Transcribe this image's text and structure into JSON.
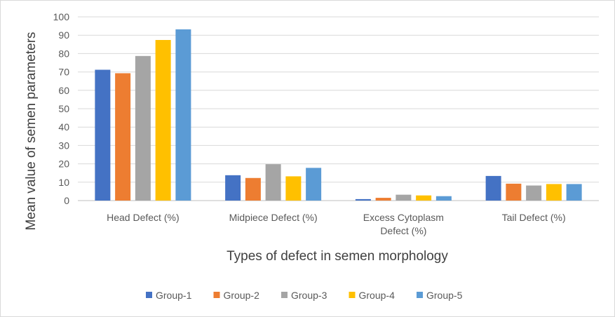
{
  "chart_data": {
    "type": "bar",
    "categories": [
      [
        "Head Defect (%)"
      ],
      [
        "Midpiece Defect (%)"
      ],
      [
        "Excess Cytoplasm",
        "Defect (%)"
      ],
      [
        "Tail Defect (%)"
      ]
    ],
    "series": [
      {
        "name": "Group-1",
        "color": "#4472C4",
        "values": [
          71.2,
          13.8,
          0.8,
          13.4
        ]
      },
      {
        "name": "Group-2",
        "color": "#ED7D31",
        "values": [
          69.3,
          12.3,
          1.5,
          9.2
        ]
      },
      {
        "name": "Group-3",
        "color": "#A5A5A5",
        "values": [
          78.7,
          19.8,
          3.2,
          8.2
        ]
      },
      {
        "name": "Group-4",
        "color": "#FFC000",
        "values": [
          87.4,
          13.2,
          2.8,
          9.0
        ]
      },
      {
        "name": "Group-5",
        "color": "#5B9BD5",
        "values": [
          93.2,
          17.8,
          2.4,
          9.0
        ]
      }
    ],
    "xlabel": "Types of defect in semen morphology",
    "ylabel": "Mean value of semen parameters",
    "ylim": [
      0,
      100
    ],
    "yticks": [
      0,
      10,
      20,
      30,
      40,
      50,
      60,
      70,
      80,
      90,
      100
    ],
    "grid": true,
    "legend_position": "bottom"
  }
}
